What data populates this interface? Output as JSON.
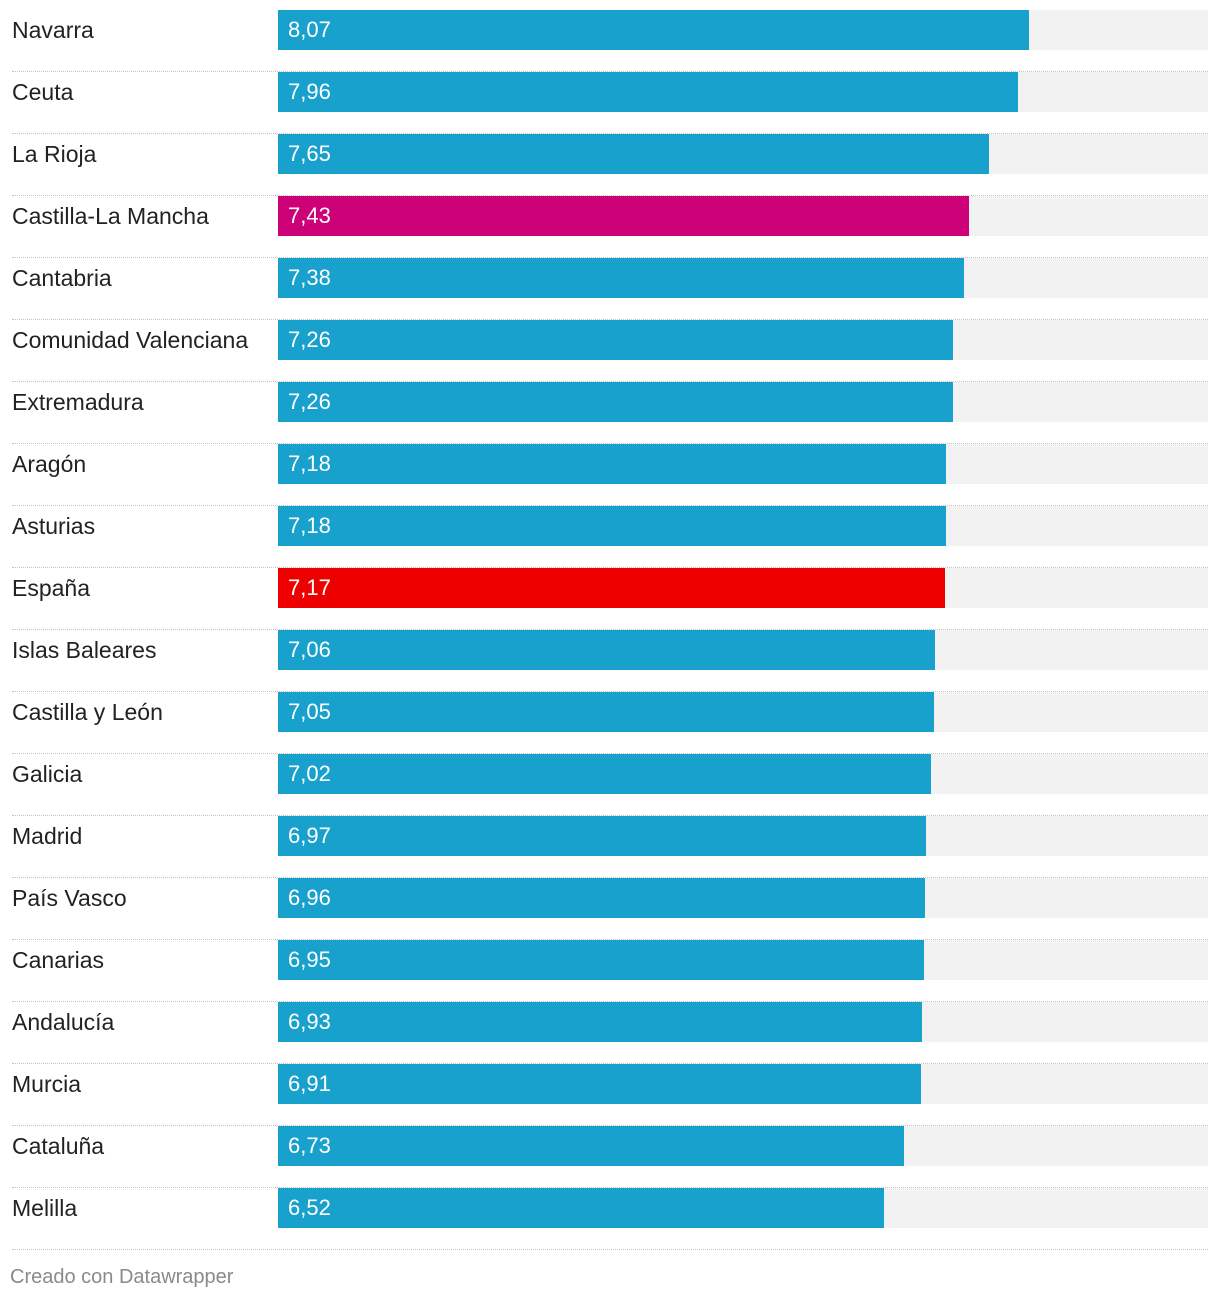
{
  "colors": {
    "default_bar": "#18a1cd",
    "highlight_region": "#cc0077",
    "highlight_national": "#ee0000",
    "track": "#f2f2f2"
  },
  "chart_data": {
    "type": "bar",
    "orientation": "horizontal",
    "title": "",
    "xlim": [
      0,
      10
    ],
    "categories": [
      "Navarra",
      "Ceuta",
      "La Rioja",
      "Castilla-La Mancha",
      "Cantabria",
      "Comunidad Valenciana",
      "Extremadura",
      "Aragón",
      "Asturias",
      "España",
      "Islas Baleares",
      "Castilla y León",
      "Galicia",
      "Madrid",
      "País Vasco",
      "Canarias",
      "Andalucía",
      "Murcia",
      "Cataluña",
      "Melilla"
    ],
    "values": [
      8.07,
      7.96,
      7.65,
      7.43,
      7.38,
      7.26,
      7.26,
      7.18,
      7.18,
      7.17,
      7.06,
      7.05,
      7.02,
      6.97,
      6.96,
      6.95,
      6.93,
      6.91,
      6.73,
      6.52
    ],
    "value_labels": [
      "8,07",
      "7,96",
      "7,65",
      "7,43",
      "7,38",
      "7,26",
      "7,26",
      "7,18",
      "7,18",
      "7,17",
      "7,06",
      "7,05",
      "7,02",
      "6,97",
      "6,96",
      "6,95",
      "6,93",
      "6,91",
      "6,73",
      "6,52"
    ],
    "highlights": {
      "Castilla-La Mancha": "highlight_region",
      "España": "highlight_national"
    }
  },
  "footer": {
    "credit": "Creado con Datawrapper"
  }
}
